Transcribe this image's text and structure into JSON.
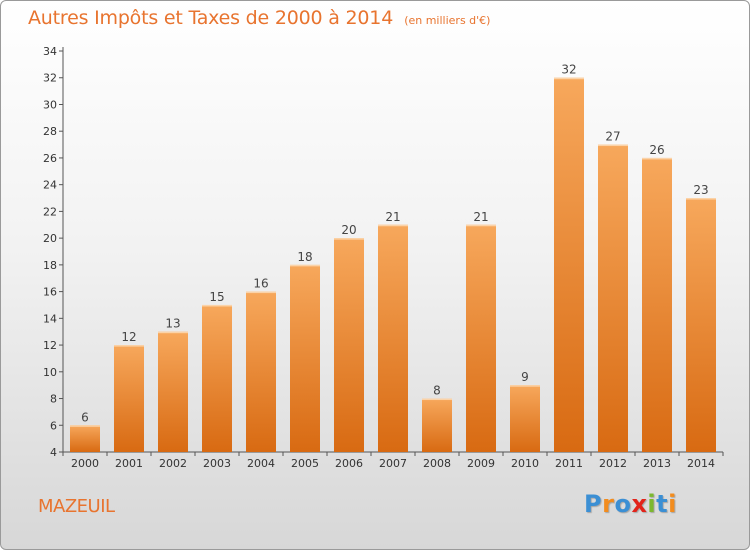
{
  "chart_data": {
    "type": "bar",
    "title": "Autres Impôts et Taxes de 2000 à 2014",
    "subtitle": "(en milliers d'€)",
    "xlabel": "",
    "ylabel": "",
    "categories": [
      "2000",
      "2001",
      "2002",
      "2003",
      "2004",
      "2005",
      "2006",
      "2007",
      "2008",
      "2009",
      "2010",
      "2011",
      "2012",
      "2013",
      "2014"
    ],
    "values": [
      6,
      12,
      13,
      15,
      16,
      18,
      20,
      21,
      8,
      21,
      9,
      32,
      27,
      26,
      23
    ],
    "ylim": [
      4,
      34
    ],
    "yticks": [
      4,
      6,
      8,
      10,
      12,
      14,
      16,
      18,
      20,
      22,
      24,
      26,
      28,
      30,
      32,
      34
    ],
    "grid": false,
    "bar_color": "#f0892e",
    "bar_color_light": "#f7a85c",
    "bar_color_dark": "#d86a12"
  },
  "footer": {
    "commune": "MAZEUIL"
  },
  "logo": {
    "letters": [
      {
        "char": "P",
        "color": "#3b8fd4"
      },
      {
        "char": "r",
        "color": "#f28c1e"
      },
      {
        "char": "o",
        "color": "#3b8fd4"
      },
      {
        "char": "x",
        "color": "#e2231a"
      },
      {
        "char": "i",
        "color": "#7cb82f"
      },
      {
        "char": "t",
        "color": "#3b8fd4"
      },
      {
        "char": "i",
        "color": "#f28c1e"
      }
    ]
  },
  "accent_color": "#e8742f"
}
